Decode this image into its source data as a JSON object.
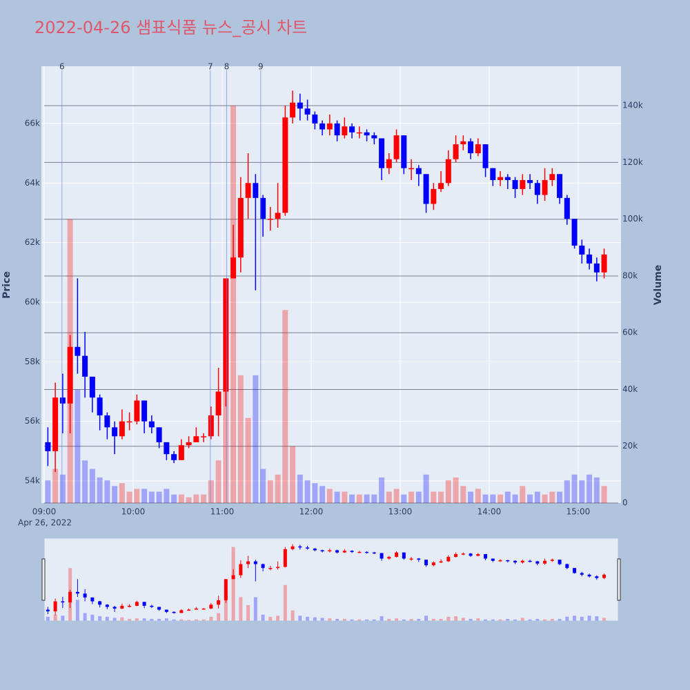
{
  "chart_data": {
    "type": "candlestick",
    "title": "2022-04-26 샘표식품 뉴스_공시 차트",
    "x": [
      "09:00",
      "09:05",
      "09:10",
      "09:15",
      "09:20",
      "09:25",
      "09:30",
      "09:35",
      "09:40",
      "09:45",
      "09:50",
      "09:55",
      "10:00",
      "10:05",
      "10:10",
      "10:15",
      "10:20",
      "10:25",
      "10:30",
      "10:35",
      "10:40",
      "10:45",
      "10:50",
      "10:55",
      "11:00",
      "11:05",
      "11:10",
      "11:15",
      "11:20",
      "11:25",
      "11:30",
      "11:35",
      "11:40",
      "11:45",
      "11:50",
      "11:55",
      "12:00",
      "12:05",
      "12:10",
      "12:15",
      "12:20",
      "12:25",
      "12:30",
      "12:35",
      "12:40",
      "12:45",
      "12:50",
      "12:55",
      "13:00",
      "13:05",
      "13:10",
      "13:15",
      "13:20",
      "13:25",
      "13:30",
      "13:35",
      "13:40",
      "13:45",
      "13:50",
      "13:55",
      "14:00",
      "14:05",
      "14:10",
      "14:15",
      "14:20",
      "14:25",
      "14:30",
      "14:35",
      "14:40",
      "14:45",
      "14:50",
      "14:55",
      "15:00",
      "15:05",
      "15:10",
      "15:15"
    ],
    "open": [
      55300,
      55000,
      56800,
      56600,
      58500,
      58200,
      57500,
      56800,
      56200,
      55800,
      55500,
      56000,
      56000,
      56700,
      56000,
      55800,
      55300,
      54900,
      54700,
      55200,
      55300,
      55500,
      55500,
      56200,
      57000,
      60800,
      61500,
      63500,
      64000,
      63500,
      62800,
      62800,
      63000,
      66200,
      66700,
      66500,
      66300,
      66000,
      65800,
      66000,
      65600,
      65900,
      65700,
      65700,
      65600,
      65500,
      64500,
      64800,
      65600,
      64500,
      64500,
      64300,
      63300,
      63800,
      64000,
      64800,
      65300,
      65400,
      65000,
      65300,
      64500,
      64100,
      64200,
      64100,
      63800,
      64100,
      64000,
      63600,
      64100,
      64300,
      63500,
      62800,
      61900,
      61600,
      61300,
      61000
    ],
    "high": [
      55800,
      57300,
      57600,
      58900,
      60800,
      59000,
      57500,
      56900,
      56300,
      56000,
      56400,
      56300,
      56900,
      56700,
      56200,
      55800,
      55300,
      55000,
      55400,
      55500,
      55800,
      55600,
      56500,
      57800,
      60800,
      62600,
      64200,
      65000,
      64300,
      63600,
      63200,
      64000,
      66600,
      67100,
      67000,
      66800,
      66400,
      66100,
      66300,
      66100,
      66200,
      66000,
      65900,
      65800,
      65700,
      65500,
      65000,
      65800,
      65600,
      64800,
      64600,
      64300,
      64000,
      64400,
      65100,
      65600,
      65600,
      65500,
      65500,
      65300,
      64500,
      64400,
      64300,
      64200,
      64300,
      64300,
      64100,
      64500,
      64500,
      64300,
      63600,
      62800,
      62100,
      61800,
      61500,
      61800
    ],
    "low": [
      54500,
      54300,
      55600,
      55600,
      57600,
      56800,
      56300,
      55700,
      55400,
      54900,
      55400,
      55700,
      55900,
      55600,
      55600,
      55100,
      54700,
      54600,
      54700,
      55100,
      55300,
      55300,
      55400,
      55500,
      56500,
      60800,
      61000,
      62800,
      60400,
      62200,
      62400,
      62500,
      62900,
      66000,
      66100,
      66100,
      65800,
      65600,
      65600,
      65400,
      65500,
      65500,
      65500,
      65400,
      65300,
      64100,
      64300,
      64700,
      64300,
      64100,
      63900,
      63000,
      63100,
      63700,
      63900,
      64700,
      65100,
      64800,
      64900,
      64200,
      63900,
      63900,
      63800,
      63500,
      63600,
      63800,
      63300,
      63400,
      63900,
      63300,
      62600,
      61800,
      61300,
      61100,
      60700,
      60800
    ],
    "close": [
      55000,
      56800,
      56600,
      58500,
      58200,
      57500,
      56800,
      56200,
      55800,
      55500,
      56000,
      56000,
      56700,
      56000,
      55800,
      55300,
      54900,
      54700,
      55200,
      55300,
      55500,
      55500,
      56200,
      57000,
      60800,
      61500,
      63500,
      64000,
      63500,
      62800,
      62800,
      63000,
      66200,
      66700,
      66500,
      66300,
      66000,
      65800,
      66000,
      65600,
      65900,
      65700,
      65700,
      65600,
      65500,
      64500,
      64800,
      65600,
      64500,
      64500,
      64300,
      63300,
      63800,
      64000,
      64800,
      65300,
      65400,
      65000,
      65300,
      64500,
      64100,
      64200,
      64100,
      63800,
      64100,
      64000,
      63600,
      64100,
      64300,
      63500,
      62800,
      61900,
      61600,
      61300,
      61000,
      61600
    ],
    "volume": [
      8000,
      12000,
      10000,
      100000,
      40000,
      15000,
      12000,
      9000,
      8000,
      6000,
      7000,
      4000,
      5000,
      5000,
      4000,
      4000,
      5000,
      3000,
      3000,
      2000,
      3000,
      3000,
      8000,
      15000,
      60000,
      140000,
      45000,
      30000,
      45000,
      12000,
      8000,
      10000,
      68000,
      20000,
      10000,
      8000,
      7000,
      6000,
      5000,
      4000,
      4000,
      3000,
      3000,
      3000,
      3000,
      9000,
      4000,
      5000,
      3000,
      4000,
      4000,
      10000,
      4000,
      4000,
      8000,
      9000,
      6000,
      4000,
      5000,
      3000,
      3000,
      3000,
      4000,
      3000,
      6000,
      3000,
      4000,
      3000,
      4000,
      4000,
      8000,
      10000,
      8000,
      10000,
      9000,
      6000
    ],
    "up_color": "#ff0000",
    "down_color": "#0000ff",
    "xlim": [
      "09:00",
      "15:27"
    ],
    "xticks": [
      "09:00",
      "10:00",
      "11:00",
      "12:00",
      "13:00",
      "14:00",
      "15:00"
    ],
    "x_date_label": "Apr 26, 2022",
    "ylabel": "Price",
    "ylim": [
      53260,
      67920
    ],
    "yticks": [
      {
        "value": 54000,
        "label": "54k"
      },
      {
        "value": 56000,
        "label": "56k"
      },
      {
        "value": 58000,
        "label": "58k"
      },
      {
        "value": 60000,
        "label": "60k"
      },
      {
        "value": 62000,
        "label": "62k"
      },
      {
        "value": 64000,
        "label": "64k"
      },
      {
        "value": 66000,
        "label": "66k"
      }
    ],
    "y2label": "Volume",
    "y2lim": [
      0,
      153900
    ],
    "y2ticks": [
      0,
      {
        "value": 20000,
        "label": "20k"
      },
      {
        "value": 40000,
        "label": "40k"
      },
      {
        "value": 60000,
        "label": "60k"
      },
      {
        "value": 80000,
        "label": "80k"
      },
      {
        "value": 100000,
        "label": "100k"
      },
      {
        "value": 120000,
        "label": "120k"
      },
      {
        "value": 140000,
        "label": "140k"
      }
    ],
    "annotations": [
      {
        "x": "09:12",
        "label": "6"
      },
      {
        "x": "10:52",
        "label": "7"
      },
      {
        "x": "11:03",
        "label": "8"
      },
      {
        "x": "11:26",
        "label": "9"
      }
    ],
    "range_slider": true
  }
}
